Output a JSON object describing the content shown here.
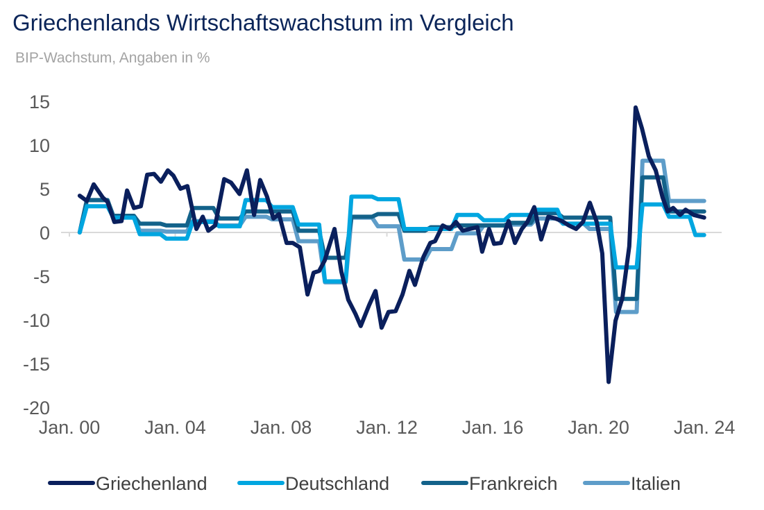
{
  "chart_data": {
    "type": "line",
    "title": "Griechenlands Wirtschaftswachstum im Vergleich",
    "subtitle": "BIP-Wachstum, Angaben in %",
    "xlabel": "",
    "ylabel": "",
    "ylim": [
      -20,
      15
    ],
    "yticks": [
      "15",
      "10",
      "5",
      "0",
      "-5",
      "-10",
      "-15",
      "-20"
    ],
    "yticks_values": [
      15,
      10,
      5,
      0,
      -5,
      -10,
      -15,
      -20
    ],
    "xlim": [
      2000,
      2024
    ],
    "xticks": [
      "Jan. 00",
      "Jan. 04",
      "Jan. 08",
      "Jan. 12",
      "Jan. 16",
      "Jan. 20",
      "Jan. 24"
    ],
    "xticks_values": [
      2000,
      2004,
      2008,
      2012,
      2016,
      2020,
      2024
    ],
    "legend_position": "bottom",
    "grid": false,
    "series": [
      {
        "name": "Griechenland",
        "color": "#0A1F5C",
        "kind": "quarterly",
        "points": [
          [
            2000.39,
            4.2
          ],
          [
            2000.66,
            3.6
          ],
          [
            2000.92,
            5.5
          ],
          [
            2001.26,
            4.0
          ],
          [
            2001.44,
            3.5
          ],
          [
            2001.7,
            1.2
          ],
          [
            2001.97,
            1.3
          ],
          [
            2002.18,
            4.8
          ],
          [
            2002.44,
            2.8
          ],
          [
            2002.7,
            3.0
          ],
          [
            2002.94,
            6.6
          ],
          [
            2003.2,
            6.7
          ],
          [
            2003.46,
            5.8
          ],
          [
            2003.72,
            7.1
          ],
          [
            2003.93,
            6.5
          ],
          [
            2004.2,
            5.0
          ],
          [
            2004.46,
            5.3
          ],
          [
            2004.8,
            0.4
          ],
          [
            2005.04,
            1.8
          ],
          [
            2005.25,
            0.2
          ],
          [
            2005.51,
            0.8
          ],
          [
            2005.85,
            6.1
          ],
          [
            2006.11,
            5.7
          ],
          [
            2006.43,
            4.4
          ],
          [
            2006.71,
            7.1
          ],
          [
            2006.98,
            2.0
          ],
          [
            2007.21,
            6.0
          ],
          [
            2007.47,
            4.1
          ],
          [
            2007.71,
            1.6
          ],
          [
            2007.92,
            2.1
          ],
          [
            2008.21,
            -1.2
          ],
          [
            2008.44,
            -1.2
          ],
          [
            2008.71,
            -1.7
          ],
          [
            2009.0,
            -7.1
          ],
          [
            2009.23,
            -4.6
          ],
          [
            2009.44,
            -4.4
          ],
          [
            2009.65,
            -3.2
          ],
          [
            2010.02,
            0.4
          ],
          [
            2010.28,
            -4.5
          ],
          [
            2010.54,
            -7.7
          ],
          [
            2010.81,
            -9.3
          ],
          [
            2011.01,
            -10.7
          ],
          [
            2011.33,
            -8.3
          ],
          [
            2011.57,
            -6.7
          ],
          [
            2011.8,
            -10.9
          ],
          [
            2012.06,
            -9.1
          ],
          [
            2012.33,
            -9.0
          ],
          [
            2012.59,
            -7.1
          ],
          [
            2012.85,
            -4.4
          ],
          [
            2013.06,
            -6.0
          ],
          [
            2013.38,
            -2.8
          ],
          [
            2013.64,
            -1.2
          ],
          [
            2013.82,
            -1.0
          ],
          [
            2014.11,
            0.8
          ],
          [
            2014.37,
            0.4
          ],
          [
            2014.61,
            1.2
          ],
          [
            2014.87,
            0.2
          ],
          [
            2015.13,
            0.4
          ],
          [
            2015.42,
            0.6
          ],
          [
            2015.6,
            -2.2
          ],
          [
            2015.86,
            0.4
          ],
          [
            2016.05,
            -1.3
          ],
          [
            2016.31,
            -1.2
          ],
          [
            2016.6,
            1.3
          ],
          [
            2016.84,
            -1.2
          ],
          [
            2017.1,
            0.4
          ],
          [
            2017.31,
            1.2
          ],
          [
            2017.57,
            2.9
          ],
          [
            2017.83,
            -0.8
          ],
          [
            2018.1,
            1.8
          ],
          [
            2018.36,
            1.6
          ],
          [
            2018.62,
            1.3
          ],
          [
            2018.88,
            0.8
          ],
          [
            2019.15,
            0.4
          ],
          [
            2019.41,
            1.2
          ],
          [
            2019.67,
            3.4
          ],
          [
            2019.93,
            1.2
          ],
          [
            2020.14,
            -2.4
          ],
          [
            2020.38,
            -17.1
          ],
          [
            2020.64,
            -10.1
          ],
          [
            2020.9,
            -7.5
          ],
          [
            2021.16,
            -1.6
          ],
          [
            2021.4,
            14.3
          ],
          [
            2021.64,
            11.9
          ],
          [
            2021.9,
            8.7
          ],
          [
            2022.16,
            7.1
          ],
          [
            2022.42,
            4.0
          ],
          [
            2022.61,
            2.4
          ],
          [
            2022.82,
            2.8
          ],
          [
            2023.08,
            2.0
          ],
          [
            2023.29,
            2.6
          ],
          [
            2023.6,
            2.0
          ],
          [
            2023.99,
            1.7
          ]
        ]
      },
      {
        "name": "Deutschland",
        "color": "#00A6E0",
        "kind": "annual",
        "start_value": 0,
        "years": [
          2000,
          2001,
          2002,
          2003,
          2004,
          2005,
          2006,
          2007,
          2008,
          2009,
          2010,
          2011,
          2012,
          2013,
          2014,
          2015,
          2016,
          2017,
          2018,
          2019,
          2020,
          2021,
          2022,
          2023
        ],
        "values": [
          3.0,
          1.7,
          -0.2,
          -0.7,
          1.2,
          0.7,
          3.7,
          2.9,
          0.9,
          -5.6,
          4.1,
          3.8,
          0.4,
          0.4,
          2.0,
          1.4,
          2.0,
          2.6,
          1.0,
          1.0,
          -4.0,
          3.2,
          1.8,
          -0.3
        ]
      },
      {
        "name": "Frankreich",
        "color": "#13628A",
        "kind": "annual",
        "start_value": 0,
        "years": [
          2000,
          2001,
          2002,
          2003,
          2004,
          2005,
          2006,
          2007,
          2008,
          2009,
          2010,
          2011,
          2012,
          2013,
          2014,
          2015,
          2016,
          2017,
          2018,
          2019,
          2020,
          2021,
          2022
        ],
        "values": [
          3.7,
          1.9,
          1.0,
          0.8,
          2.8,
          1.6,
          2.4,
          2.4,
          0.2,
          -2.9,
          1.8,
          2.1,
          0.2,
          0.6,
          0.8,
          0.8,
          1.1,
          2.2,
          1.7,
          1.7,
          -7.6,
          6.3,
          2.4
        ]
      },
      {
        "name": "Italien",
        "color": "#5E9DC9",
        "kind": "annual",
        "start_value": 0,
        "years": [
          2000,
          2001,
          2002,
          2003,
          2004,
          2005,
          2006,
          2007,
          2008,
          2009,
          2010,
          2011,
          2012,
          2013,
          2014,
          2015,
          2016,
          2017,
          2018,
          2019,
          2020,
          2021,
          2022
        ],
        "values": [
          3.7,
          1.8,
          0.2,
          0.1,
          1.3,
          0.8,
          1.8,
          1.5,
          -1.0,
          -5.7,
          1.7,
          0.7,
          -3.1,
          -1.9,
          -0.1,
          0.8,
          0.9,
          1.6,
          1.0,
          0.4,
          -9.1,
          8.2,
          3.6
        ]
      }
    ]
  }
}
